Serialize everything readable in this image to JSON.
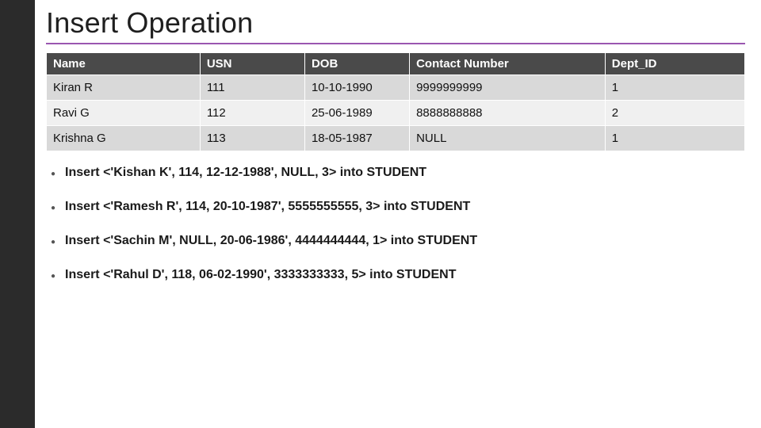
{
  "title": "Insert Operation",
  "accent_color": "#9a57b0",
  "sidebar_color": "#2b2b2b",
  "table": {
    "header_bg": "#4a4a4a",
    "header_fg": "#ffffff",
    "row_bg_alt": "#d9d9d9",
    "row_bg": "#f0f0f0",
    "border_color": "#ffffff",
    "col_widths_pct": [
      22,
      15,
      15,
      28,
      20
    ],
    "columns": [
      "Name",
      "USN",
      "DOB",
      "Contact Number",
      "Dept_ID"
    ],
    "rows": [
      [
        "Kiran R",
        "111",
        "10-10-1990",
        "9999999999",
        "1"
      ],
      [
        "Ravi G",
        "112",
        "25-06-1989",
        "8888888888",
        "2"
      ],
      [
        "Krishna G",
        "113",
        "18-05-1987",
        "NULL",
        "1"
      ]
    ]
  },
  "inserts": [
    "Insert <'Kishan K', 114, 12-12-1988', NULL, 3> into STUDENT",
    "Insert <'Ramesh R', 114, 20-10-1987', 5555555555, 3> into STUDENT",
    "Insert <'Sachin M', NULL, 20-06-1986', 4444444444, 1> into STUDENT",
    "Insert <'Rahul D', 118, 06-02-1990', 3333333333, 5> into STUDENT"
  ]
}
